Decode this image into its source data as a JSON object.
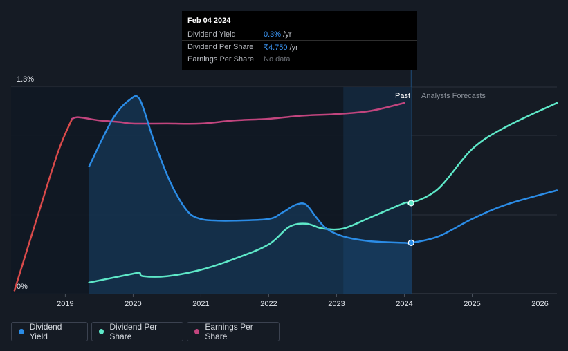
{
  "tooltip": {
    "date": "Feb 04 2024",
    "rows": [
      {
        "label": "Dividend Yield",
        "value": "0.3%",
        "unit": " /yr"
      },
      {
        "label": "Dividend Per Share",
        "value": "₹4.750",
        "unit": " /yr"
      },
      {
        "label": "Earnings Per Share",
        "value": "No data",
        "unit": ""
      }
    ]
  },
  "legend": {
    "items": [
      {
        "label": "Dividend Yield",
        "color": "#2b8ce6"
      },
      {
        "label": "Dividend Per Share",
        "color": "#5ee8c8"
      },
      {
        "label": "Earnings Per Share",
        "color": "#c2457e"
      }
    ]
  },
  "chart_data": {
    "type": "line",
    "title": "",
    "y_top_label": "1.3%",
    "y_bottom_label": "0%",
    "ylim": [
      0,
      1.3
    ],
    "xlim": [
      2018.2,
      2026.25
    ],
    "past_label": "Past",
    "forecast_label": "Analysts Forecasts",
    "past_region": [
      2023.1,
      2024.1
    ],
    "highlight_x": 2024.1,
    "x_ticks": [
      "2019",
      "2020",
      "2021",
      "2022",
      "2023",
      "2024",
      "2025",
      "2026"
    ],
    "x_tick_values": [
      2019,
      2020,
      2021,
      2022,
      2023,
      2024,
      2025,
      2026
    ],
    "colors": {
      "yield": "#2b8ce6",
      "dps": "#5ee8c8",
      "eps_up": "#c2457e",
      "eps_down": "#d94a4a"
    },
    "series": [
      {
        "name": "Dividend Yield",
        "key": "yield",
        "x": [
          2019.35,
          2019.7,
          2019.95,
          2020.1,
          2020.3,
          2020.55,
          2020.8,
          2021.0,
          2021.25,
          2021.5,
          2022.0,
          2022.2,
          2022.4,
          2022.55,
          2022.7,
          2022.85,
          2023.1,
          2023.5,
          2024.0,
          2024.1,
          2024.5,
          2025.0,
          2025.5,
          2026.25
        ],
        "values": [
          0.8,
          1.1,
          1.22,
          1.22,
          0.97,
          0.7,
          0.52,
          0.47,
          0.46,
          0.46,
          0.47,
          0.51,
          0.56,
          0.56,
          0.48,
          0.41,
          0.36,
          0.33,
          0.32,
          0.32,
          0.36,
          0.47,
          0.56,
          0.65
        ]
      },
      {
        "name": "Dividend Per Share",
        "key": "dps",
        "x": [
          2019.35,
          2019.7,
          2020.05,
          2020.1,
          2020.15,
          2020.5,
          2021.0,
          2021.5,
          2022.0,
          2022.3,
          2022.55,
          2022.8,
          2023.1,
          2023.5,
          2024.0,
          2024.1,
          2024.5,
          2025.0,
          2025.5,
          2026.25
        ],
        "values": [
          0.07,
          0.1,
          0.13,
          0.13,
          0.11,
          0.11,
          0.15,
          0.22,
          0.31,
          0.42,
          0.44,
          0.41,
          0.41,
          0.48,
          0.57,
          0.57,
          0.66,
          0.91,
          1.05,
          1.2
        ]
      },
      {
        "name": "Earnings Per Share",
        "key": "eps",
        "x": [
          2018.25,
          2018.6,
          2018.9,
          2019.1,
          2019.2,
          2019.5,
          2019.8,
          2020.0,
          2020.5,
          2021.0,
          2021.5,
          2022.0,
          2022.5,
          2023.0,
          2023.5,
          2024.0
        ],
        "values": [
          0.02,
          0.5,
          0.9,
          1.1,
          1.11,
          1.09,
          1.08,
          1.07,
          1.07,
          1.07,
          1.09,
          1.1,
          1.12,
          1.13,
          1.15,
          1.2
        ]
      }
    ]
  }
}
